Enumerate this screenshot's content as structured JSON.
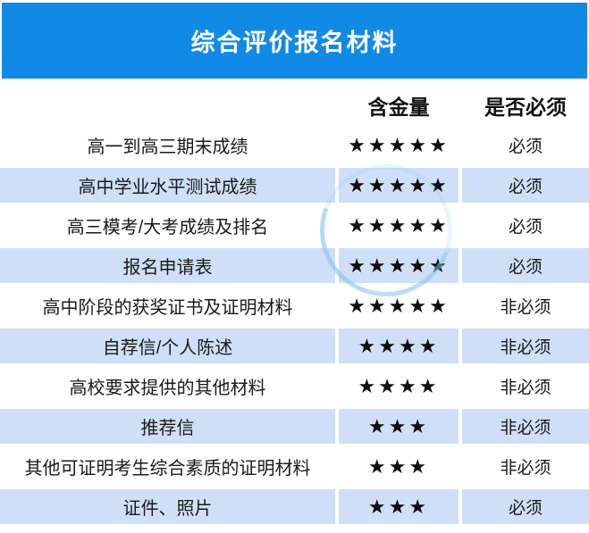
{
  "banner": {
    "title": "综合评价报名材料"
  },
  "table": {
    "headers": {
      "material": "",
      "value": "含金量",
      "required": "是否必须"
    },
    "rows": [
      {
        "material": "高一到高三期末成绩",
        "star_count": 5,
        "stars": "★★★★★",
        "required": "必须"
      },
      {
        "material": "高中学业水平测试成绩",
        "star_count": 5,
        "stars": "★★★★★",
        "required": "必须"
      },
      {
        "material": "高三模考/大考成绩及排名",
        "star_count": 5,
        "stars": "★★★★★",
        "required": "必须"
      },
      {
        "material": "报名申请表",
        "star_count": 5,
        "stars": "★★★★★",
        "required": "必须"
      },
      {
        "material": "高中阶段的获奖证书及证明材料",
        "star_count": 5,
        "stars": "★★★★★",
        "required": "非必须"
      },
      {
        "material": "自荐信/个人陈述",
        "star_count": 4,
        "stars": "★★★★",
        "required": "非必须"
      },
      {
        "material": "高校要求提供的其他材料",
        "star_count": 4,
        "stars": "★★★★",
        "required": "非必须"
      },
      {
        "material": "推荐信",
        "star_count": 3,
        "stars": "★★★",
        "required": "非必须"
      },
      {
        "material": "其他可证明考生综合素质的证明材料",
        "star_count": 3,
        "stars": "★★★",
        "required": "非必须"
      },
      {
        "material": "证件、照片",
        "star_count": 3,
        "stars": "★★★",
        "required": "必须"
      }
    ]
  },
  "colors": {
    "banner_bg": "#118ae6",
    "banner_text": "#ffffff",
    "alt_row_bg": "#cfdff7",
    "star": "#0d0d0d",
    "text": "#1a1a1a",
    "watermark_ring": "#82c6f0"
  },
  "chart_data": {
    "type": "table",
    "title": "综合评价报名材料",
    "columns": [
      "",
      "含金量",
      "是否必须"
    ],
    "rows": [
      [
        "高一到高三期末成绩",
        5,
        "必须"
      ],
      [
        "高中学业水平测试成绩",
        5,
        "必须"
      ],
      [
        "高三模考/大考成绩及排名",
        5,
        "必须"
      ],
      [
        "报名申请表",
        5,
        "必须"
      ],
      [
        "高中阶段的获奖证书及证明材料",
        5,
        "非必须"
      ],
      [
        "自荐信/个人陈述",
        4,
        "非必须"
      ],
      [
        "高校要求提供的其他材料",
        4,
        "非必须"
      ],
      [
        "推荐信",
        3,
        "非必须"
      ],
      [
        "其他可证明考生综合素质的证明材料",
        3,
        "非必须"
      ],
      [
        "证件、照片",
        3,
        "必须"
      ]
    ],
    "notes": "含金量 rendered as black star ratings (3-5 stars); rows alternate white and light blue backgrounds"
  }
}
